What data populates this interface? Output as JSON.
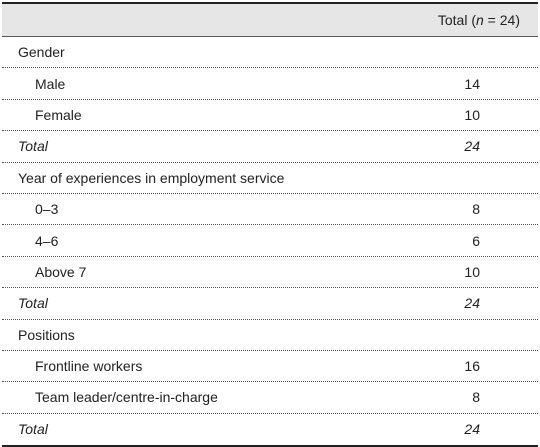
{
  "table": {
    "header": [
      "Total (",
      "n",
      " = 24)"
    ],
    "sections": [
      {
        "label": "Gender",
        "rows": [
          [
            "Male",
            14
          ],
          [
            "Female",
            10
          ]
        ],
        "total": [
          "Total",
          24
        ]
      },
      {
        "label": "Year of experiences in employment service",
        "rows": [
          [
            "0–3",
            8
          ],
          [
            "4–6",
            6
          ],
          [
            "Above 7",
            10
          ]
        ],
        "total": [
          "Total",
          24
        ]
      },
      {
        "label": "Positions",
        "rows": [
          [
            "Frontline workers",
            16
          ],
          [
            "Team leader/centre-in-charge",
            8
          ]
        ],
        "total": [
          "Total",
          24
        ]
      }
    ]
  }
}
